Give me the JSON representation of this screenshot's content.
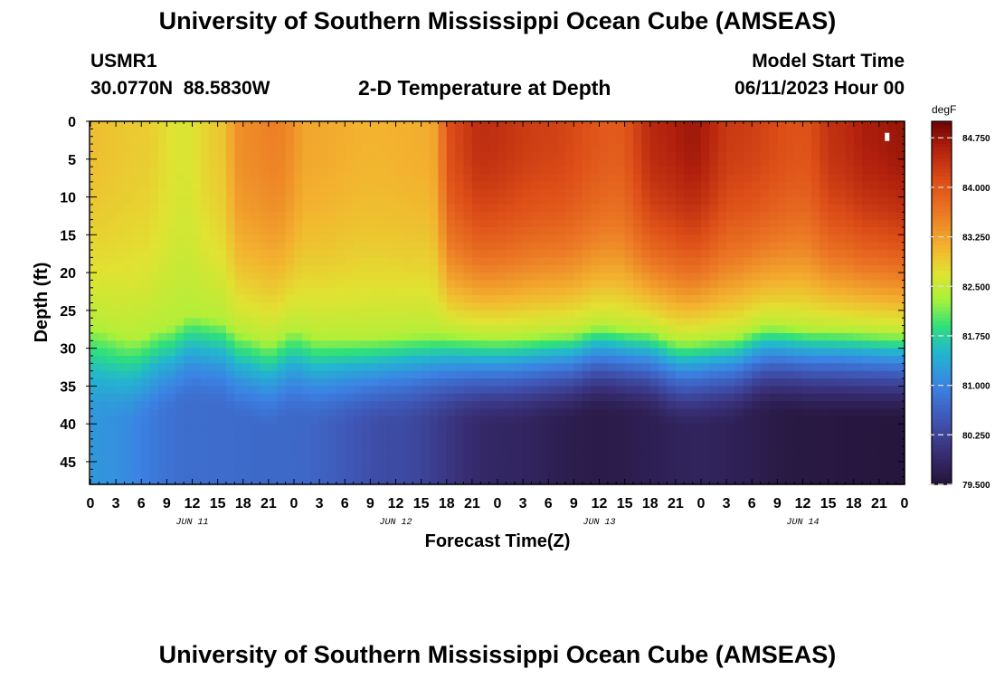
{
  "header": {
    "title": "University of Southern Mississippi Ocean Cube (AMSEAS)",
    "station_id": "USMR1",
    "station_coords": "30.0770N  88.5830W",
    "plot_title": "2-D Temperature at Depth",
    "model_start_label": "Model Start Time",
    "model_start_value": "06/11/2023 Hour 00"
  },
  "footer": {
    "title": "University of Southern Mississippi Ocean Cube (AMSEAS)"
  },
  "chart_data": {
    "type": "heatmap",
    "title": "2-D Temperature at Depth",
    "xlabel": "Forecast Time(Z)",
    "ylabel": "Depth (ft)",
    "x_unit": "hours since 06/11/2023 00Z",
    "xlim": [
      0,
      96
    ],
    "ylim": [
      0,
      48
    ],
    "y_inverted": true,
    "x_ticks": [
      {
        "hour": 0,
        "label": "0"
      },
      {
        "hour": 3,
        "label": "3"
      },
      {
        "hour": 6,
        "label": "6"
      },
      {
        "hour": 9,
        "label": "9"
      },
      {
        "hour": 12,
        "label": "12"
      },
      {
        "hour": 15,
        "label": "15"
      },
      {
        "hour": 18,
        "label": "18"
      },
      {
        "hour": 21,
        "label": "21"
      },
      {
        "hour": 24,
        "label": "0"
      },
      {
        "hour": 27,
        "label": "3"
      },
      {
        "hour": 30,
        "label": "6"
      },
      {
        "hour": 33,
        "label": "9"
      },
      {
        "hour": 36,
        "label": "12"
      },
      {
        "hour": 39,
        "label": "15"
      },
      {
        "hour": 42,
        "label": "18"
      },
      {
        "hour": 45,
        "label": "21"
      },
      {
        "hour": 48,
        "label": "0"
      },
      {
        "hour": 51,
        "label": "3"
      },
      {
        "hour": 54,
        "label": "6"
      },
      {
        "hour": 57,
        "label": "9"
      },
      {
        "hour": 60,
        "label": "12"
      },
      {
        "hour": 63,
        "label": "15"
      },
      {
        "hour": 66,
        "label": "18"
      },
      {
        "hour": 69,
        "label": "21"
      },
      {
        "hour": 72,
        "label": "0"
      },
      {
        "hour": 75,
        "label": "3"
      },
      {
        "hour": 78,
        "label": "6"
      },
      {
        "hour": 81,
        "label": "9"
      },
      {
        "hour": 84,
        "label": "12"
      },
      {
        "hour": 87,
        "label": "15"
      },
      {
        "hour": 90,
        "label": "18"
      },
      {
        "hour": 93,
        "label": "21"
      },
      {
        "hour": 96,
        "label": "0"
      }
    ],
    "day_labels": [
      {
        "hour": 12,
        "label": "JUN 11"
      },
      {
        "hour": 36,
        "label": "JUN 12"
      },
      {
        "hour": 60,
        "label": "JUN 13"
      },
      {
        "hour": 84,
        "label": "JUN 14"
      }
    ],
    "y_ticks": [
      0,
      5,
      10,
      15,
      20,
      25,
      30,
      35,
      40,
      45
    ],
    "colorbar": {
      "unit": "degF",
      "range": [
        79.5,
        85.0
      ],
      "tick_values": [
        84.75,
        84.0,
        83.25,
        82.5,
        81.75,
        81.0,
        80.25,
        79.5
      ],
      "tick_labels": [
        "84.750",
        "84.000",
        "83.250",
        "82.500",
        "81.750",
        "81.000",
        "80.250",
        "79.500"
      ],
      "colormap_stops": [
        {
          "value": 79.5,
          "color": "#241336"
        },
        {
          "value": 80.0,
          "color": "#392f77"
        },
        {
          "value": 80.5,
          "color": "#3f57b6"
        },
        {
          "value": 81.0,
          "color": "#3b83e4"
        },
        {
          "value": 81.5,
          "color": "#22b6cf"
        },
        {
          "value": 81.9,
          "color": "#2fe07b"
        },
        {
          "value": 82.3,
          "color": "#a6f23a"
        },
        {
          "value": 82.7,
          "color": "#e1e232"
        },
        {
          "value": 83.1,
          "color": "#f3b32f"
        },
        {
          "value": 83.6,
          "color": "#ec7a25"
        },
        {
          "value": 84.1,
          "color": "#dd4e18"
        },
        {
          "value": 84.6,
          "color": "#b1200d"
        },
        {
          "value": 85.0,
          "color": "#6b0505"
        }
      ]
    },
    "surface_temperature_degF": {
      "hours": [
        0,
        6,
        11,
        15,
        18,
        22,
        26,
        33,
        40,
        43,
        46,
        54,
        62,
        67,
        71,
        76,
        84,
        88,
        92,
        96
      ],
      "values": [
        83.0,
        82.9,
        82.65,
        82.9,
        83.45,
        83.55,
        83.2,
        83.1,
        83.15,
        84.2,
        84.45,
        84.25,
        83.95,
        84.55,
        84.7,
        84.3,
        84.05,
        84.45,
        84.65,
        84.75
      ]
    },
    "mixed_layer_depth_ft": {
      "hours": [
        0,
        5,
        9,
        12,
        15,
        18,
        21,
        24,
        27,
        32,
        40,
        48,
        56,
        60,
        65,
        70,
        75,
        80,
        86,
        96
      ],
      "values": [
        27.0,
        28.5,
        27.0,
        25.5,
        26.0,
        28.0,
        29.0,
        27.5,
        28.5,
        28.5,
        28.0,
        28.5,
        28.0,
        27.0,
        27.5,
        29.0,
        28.5,
        27.0,
        27.5,
        28.0
      ]
    },
    "bottom_temperature_degF": {
      "hours": [
        0,
        12,
        24,
        36,
        48,
        60,
        72,
        84,
        96
      ],
      "values": [
        81.2,
        80.75,
        80.7,
        80.35,
        79.85,
        79.65,
        79.8,
        79.6,
        79.55
      ]
    },
    "marker": {
      "hour": 94,
      "depth_ft": 2
    }
  }
}
